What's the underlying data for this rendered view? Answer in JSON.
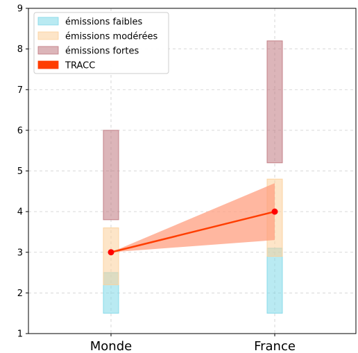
{
  "chart_data": {
    "type": "range-bar",
    "categories": [
      "Monde",
      "France"
    ],
    "ylim": [
      1,
      9
    ],
    "yticks": [
      "1",
      "2",
      "3",
      "4",
      "5",
      "6",
      "7",
      "8",
      "9"
    ],
    "grid": true,
    "legend_position": "top-left",
    "series": [
      {
        "name": "émissions faibles",
        "color": "#7fd8e8",
        "ranges": [
          [
            1.5,
            2.5
          ],
          [
            1.5,
            3.1
          ]
        ]
      },
      {
        "name": "émissions modérées",
        "color": "#fcd09a",
        "ranges": [
          [
            2.2,
            3.6
          ],
          [
            2.9,
            4.8
          ]
        ]
      },
      {
        "name": "émissions fortes",
        "color": "#c07880",
        "ranges": [
          [
            3.8,
            6.0
          ],
          [
            5.2,
            8.2
          ]
        ]
      }
    ],
    "tracc": {
      "name": "TRACC",
      "color": "#ff3d00",
      "band_color": "#ff9f80",
      "points": [
        3.0,
        4.0
      ],
      "band_end": [
        3.3,
        4.7
      ]
    }
  }
}
